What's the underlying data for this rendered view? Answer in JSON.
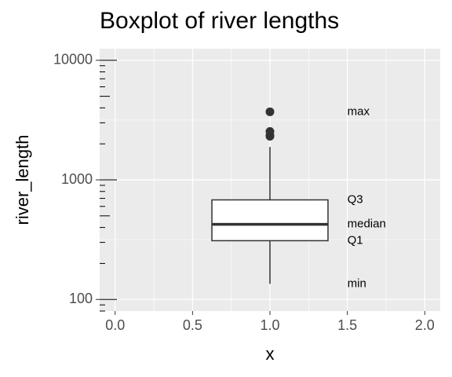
{
  "chart_data": {
    "type": "boxplot",
    "title": "Boxplot of river lengths",
    "x_label": "x",
    "y_label": "river_length",
    "xlim": [
      -0.1,
      2.1
    ],
    "xticks": [
      {
        "value": 0,
        "label": "0.0"
      },
      {
        "value": 0.5,
        "label": "0.5"
      },
      {
        "value": 1,
        "label": "1.0"
      },
      {
        "value": 1.5,
        "label": "1.5"
      },
      {
        "value": 2,
        "label": "2.0"
      }
    ],
    "ylim": [
      80,
      12500
    ],
    "yticks": [
      100,
      1000,
      10000
    ],
    "log_y": true,
    "grid": true,
    "boxes": [
      {
        "x": 1,
        "min": 135,
        "q1": 310,
        "median": 425,
        "q3": 680,
        "max": 1885,
        "outliers": [
          2315,
          2348,
          2540,
          3710
        ]
      }
    ],
    "annotations": [
      {
        "text": "max",
        "x": 1.5,
        "y": 3710
      },
      {
        "text": "Q3",
        "x": 1.5,
        "y": 680
      },
      {
        "text": "median",
        "x": 1.5,
        "y": 425
      },
      {
        "text": "Q1",
        "x": 1.5,
        "y": 310
      },
      {
        "text": "min",
        "x": 1.5,
        "y": 135
      }
    ]
  }
}
